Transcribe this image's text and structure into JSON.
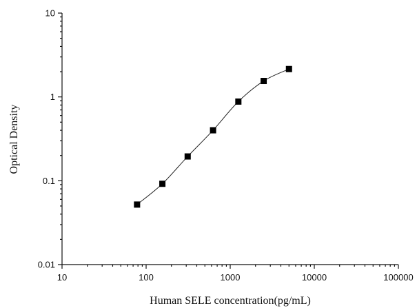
{
  "chart_data": {
    "type": "scatter",
    "xlabel": "Human SELE concentration(pg/mL)",
    "ylabel": "Optical Density",
    "x_scale": "log",
    "y_scale": "log",
    "xlim": [
      10,
      100000
    ],
    "ylim": [
      0.01,
      10
    ],
    "x_ticks": [
      "10",
      "100",
      "1000",
      "10000",
      "100000"
    ],
    "y_ticks": [
      "10",
      "1",
      "0.1",
      "0.01"
    ],
    "grid": false,
    "series": [
      {
        "x": [
          78,
          156,
          312,
          625,
          1250,
          2500,
          5000
        ],
        "y": [
          0.052,
          0.092,
          0.195,
          0.4,
          0.88,
          1.55,
          2.15
        ],
        "marker": "square",
        "line": "smooth",
        "color": "#000000"
      }
    ]
  }
}
